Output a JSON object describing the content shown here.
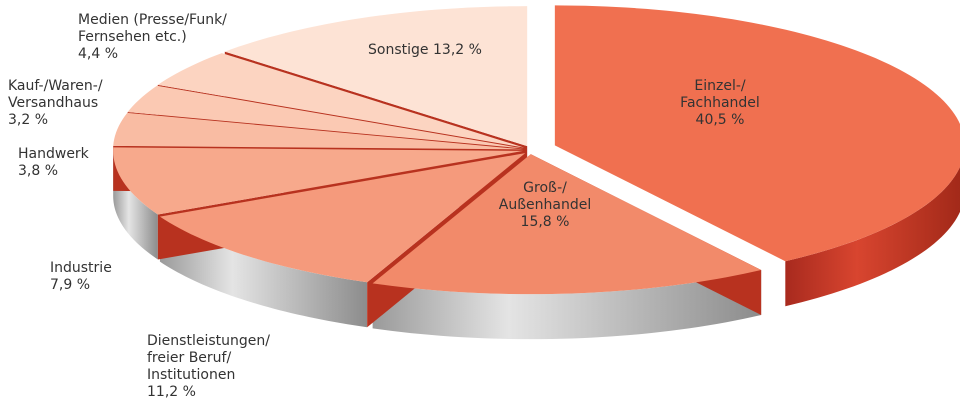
{
  "chart_data": {
    "type": "pie",
    "categories": [
      "Einzel-/\nFachhandel",
      "Groß-/\nAußenhandel",
      "Dienstleistungen/\nfreier Beruf/\nInstitutionen",
      "Industrie",
      "Handwerk",
      "Kauf-/Waren-/\nVersandhaus",
      "Medien (Presse/Funk/\nFernsehen etc.)",
      "Sonstige"
    ],
    "values": [
      40.5,
      15.8,
      11.2,
      7.9,
      3.8,
      3.2,
      4.4,
      13.2
    ],
    "value_labels": [
      "40,5 %",
      "15,8 %",
      "11,2 %",
      "7,9 %",
      "3,8 %",
      "3,2 %",
      "4,4 %",
      "13,2 %"
    ],
    "colors": [
      "#f07050",
      "#f28a6a",
      "#f59a7c",
      "#f7a98c",
      "#f9bca3",
      "#fbc9b3",
      "#fcd4c1",
      "#fde3d5"
    ]
  }
}
